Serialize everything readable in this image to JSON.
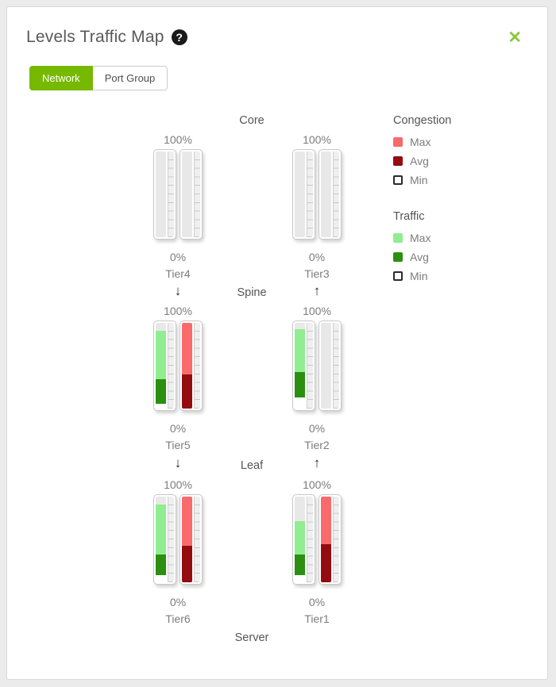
{
  "dialog": {
    "title": "Levels Traffic Map",
    "help_glyph": "?",
    "close_glyph": "✕",
    "tabs": [
      {
        "label": "Network",
        "active": true
      },
      {
        "label": "Port Group",
        "active": false
      }
    ]
  },
  "icons": {
    "down_arrow": "↓",
    "up_arrow": "↑"
  },
  "colors": {
    "accent_green": "#76b900",
    "close_green": "#8cc63f",
    "empty": "#e8e8e8",
    "white": "#ffffff",
    "traffic_max": "#90ee90",
    "traffic_avg": "#2b8f10",
    "congestion_max": "#f96a6b",
    "congestion_avg": "#940b10"
  },
  "map": {
    "level_labels": [
      "Core",
      "Spine",
      "Leaf",
      "Server"
    ],
    "tiers": [
      {
        "name": "Tier4",
        "row": 0,
        "col": "left",
        "top_label": "100%",
        "bottom_label": "0%",
        "bars": [
          {
            "kind": "traffic",
            "segments": [
              {
                "color": "empty",
                "pct": 100
              }
            ]
          },
          {
            "kind": "congestion",
            "segments": [
              {
                "color": "empty",
                "pct": 100
              }
            ]
          }
        ]
      },
      {
        "name": "Tier3",
        "row": 0,
        "col": "right",
        "top_label": "100%",
        "bottom_label": "0%",
        "bars": [
          {
            "kind": "traffic",
            "segments": [
              {
                "color": "empty",
                "pct": 100
              }
            ]
          },
          {
            "kind": "congestion",
            "segments": [
              {
                "color": "empty",
                "pct": 100
              }
            ]
          }
        ]
      },
      {
        "name": "Tier5",
        "row": 1,
        "col": "left",
        "top_label": "100%",
        "bottom_label": "0%",
        "bars": [
          {
            "kind": "traffic",
            "segments": [
              {
                "color": "empty",
                "pct": 9
              },
              {
                "color": "traffic_max",
                "pct": 57
              },
              {
                "color": "traffic_avg",
                "pct": 28
              },
              {
                "color": "white",
                "pct": 6
              }
            ]
          },
          {
            "kind": "congestion",
            "segments": [
              {
                "color": "congestion_max",
                "pct": 60
              },
              {
                "color": "congestion_avg",
                "pct": 40
              }
            ]
          }
        ]
      },
      {
        "name": "Tier2",
        "row": 1,
        "col": "right",
        "top_label": "100%",
        "bottom_label": "0%",
        "bars": [
          {
            "kind": "traffic",
            "segments": [
              {
                "color": "empty",
                "pct": 7
              },
              {
                "color": "traffic_max",
                "pct": 50
              },
              {
                "color": "traffic_avg",
                "pct": 30
              },
              {
                "color": "white",
                "pct": 13
              }
            ]
          },
          {
            "kind": "congestion",
            "segments": [
              {
                "color": "empty",
                "pct": 100
              }
            ]
          }
        ]
      },
      {
        "name": "Tier6",
        "row": 2,
        "col": "left",
        "top_label": "100%",
        "bottom_label": "0%",
        "bars": [
          {
            "kind": "traffic",
            "segments": [
              {
                "color": "empty",
                "pct": 9
              },
              {
                "color": "traffic_max",
                "pct": 59
              },
              {
                "color": "traffic_avg",
                "pct": 24
              },
              {
                "color": "white",
                "pct": 8
              }
            ]
          },
          {
            "kind": "congestion",
            "segments": [
              {
                "color": "congestion_max",
                "pct": 57
              },
              {
                "color": "congestion_avg",
                "pct": 43
              }
            ]
          }
        ]
      },
      {
        "name": "Tier1",
        "row": 2,
        "col": "right",
        "top_label": "100%",
        "bottom_label": "0%",
        "bars": [
          {
            "kind": "traffic",
            "segments": [
              {
                "color": "empty",
                "pct": 29
              },
              {
                "color": "traffic_max",
                "pct": 39
              },
              {
                "color": "traffic_avg",
                "pct": 24
              },
              {
                "color": "white",
                "pct": 8
              }
            ]
          },
          {
            "kind": "congestion",
            "segments": [
              {
                "color": "congestion_max",
                "pct": 56
              },
              {
                "color": "congestion_avg",
                "pct": 44
              }
            ]
          }
        ]
      }
    ]
  },
  "legend": {
    "groups": [
      {
        "title": "Congestion",
        "items": [
          {
            "label": "Max",
            "swatch": "congestion_max",
            "outlined": false
          },
          {
            "label": "Avg",
            "swatch": "congestion_avg",
            "outlined": false
          },
          {
            "label": "Min",
            "swatch": "white",
            "outlined": true
          }
        ]
      },
      {
        "title": "Traffic",
        "items": [
          {
            "label": "Max",
            "swatch": "traffic_max",
            "outlined": false
          },
          {
            "label": "Avg",
            "swatch": "traffic_avg",
            "outlined": false
          },
          {
            "label": "Min",
            "swatch": "white",
            "outlined": true
          }
        ]
      }
    ]
  }
}
